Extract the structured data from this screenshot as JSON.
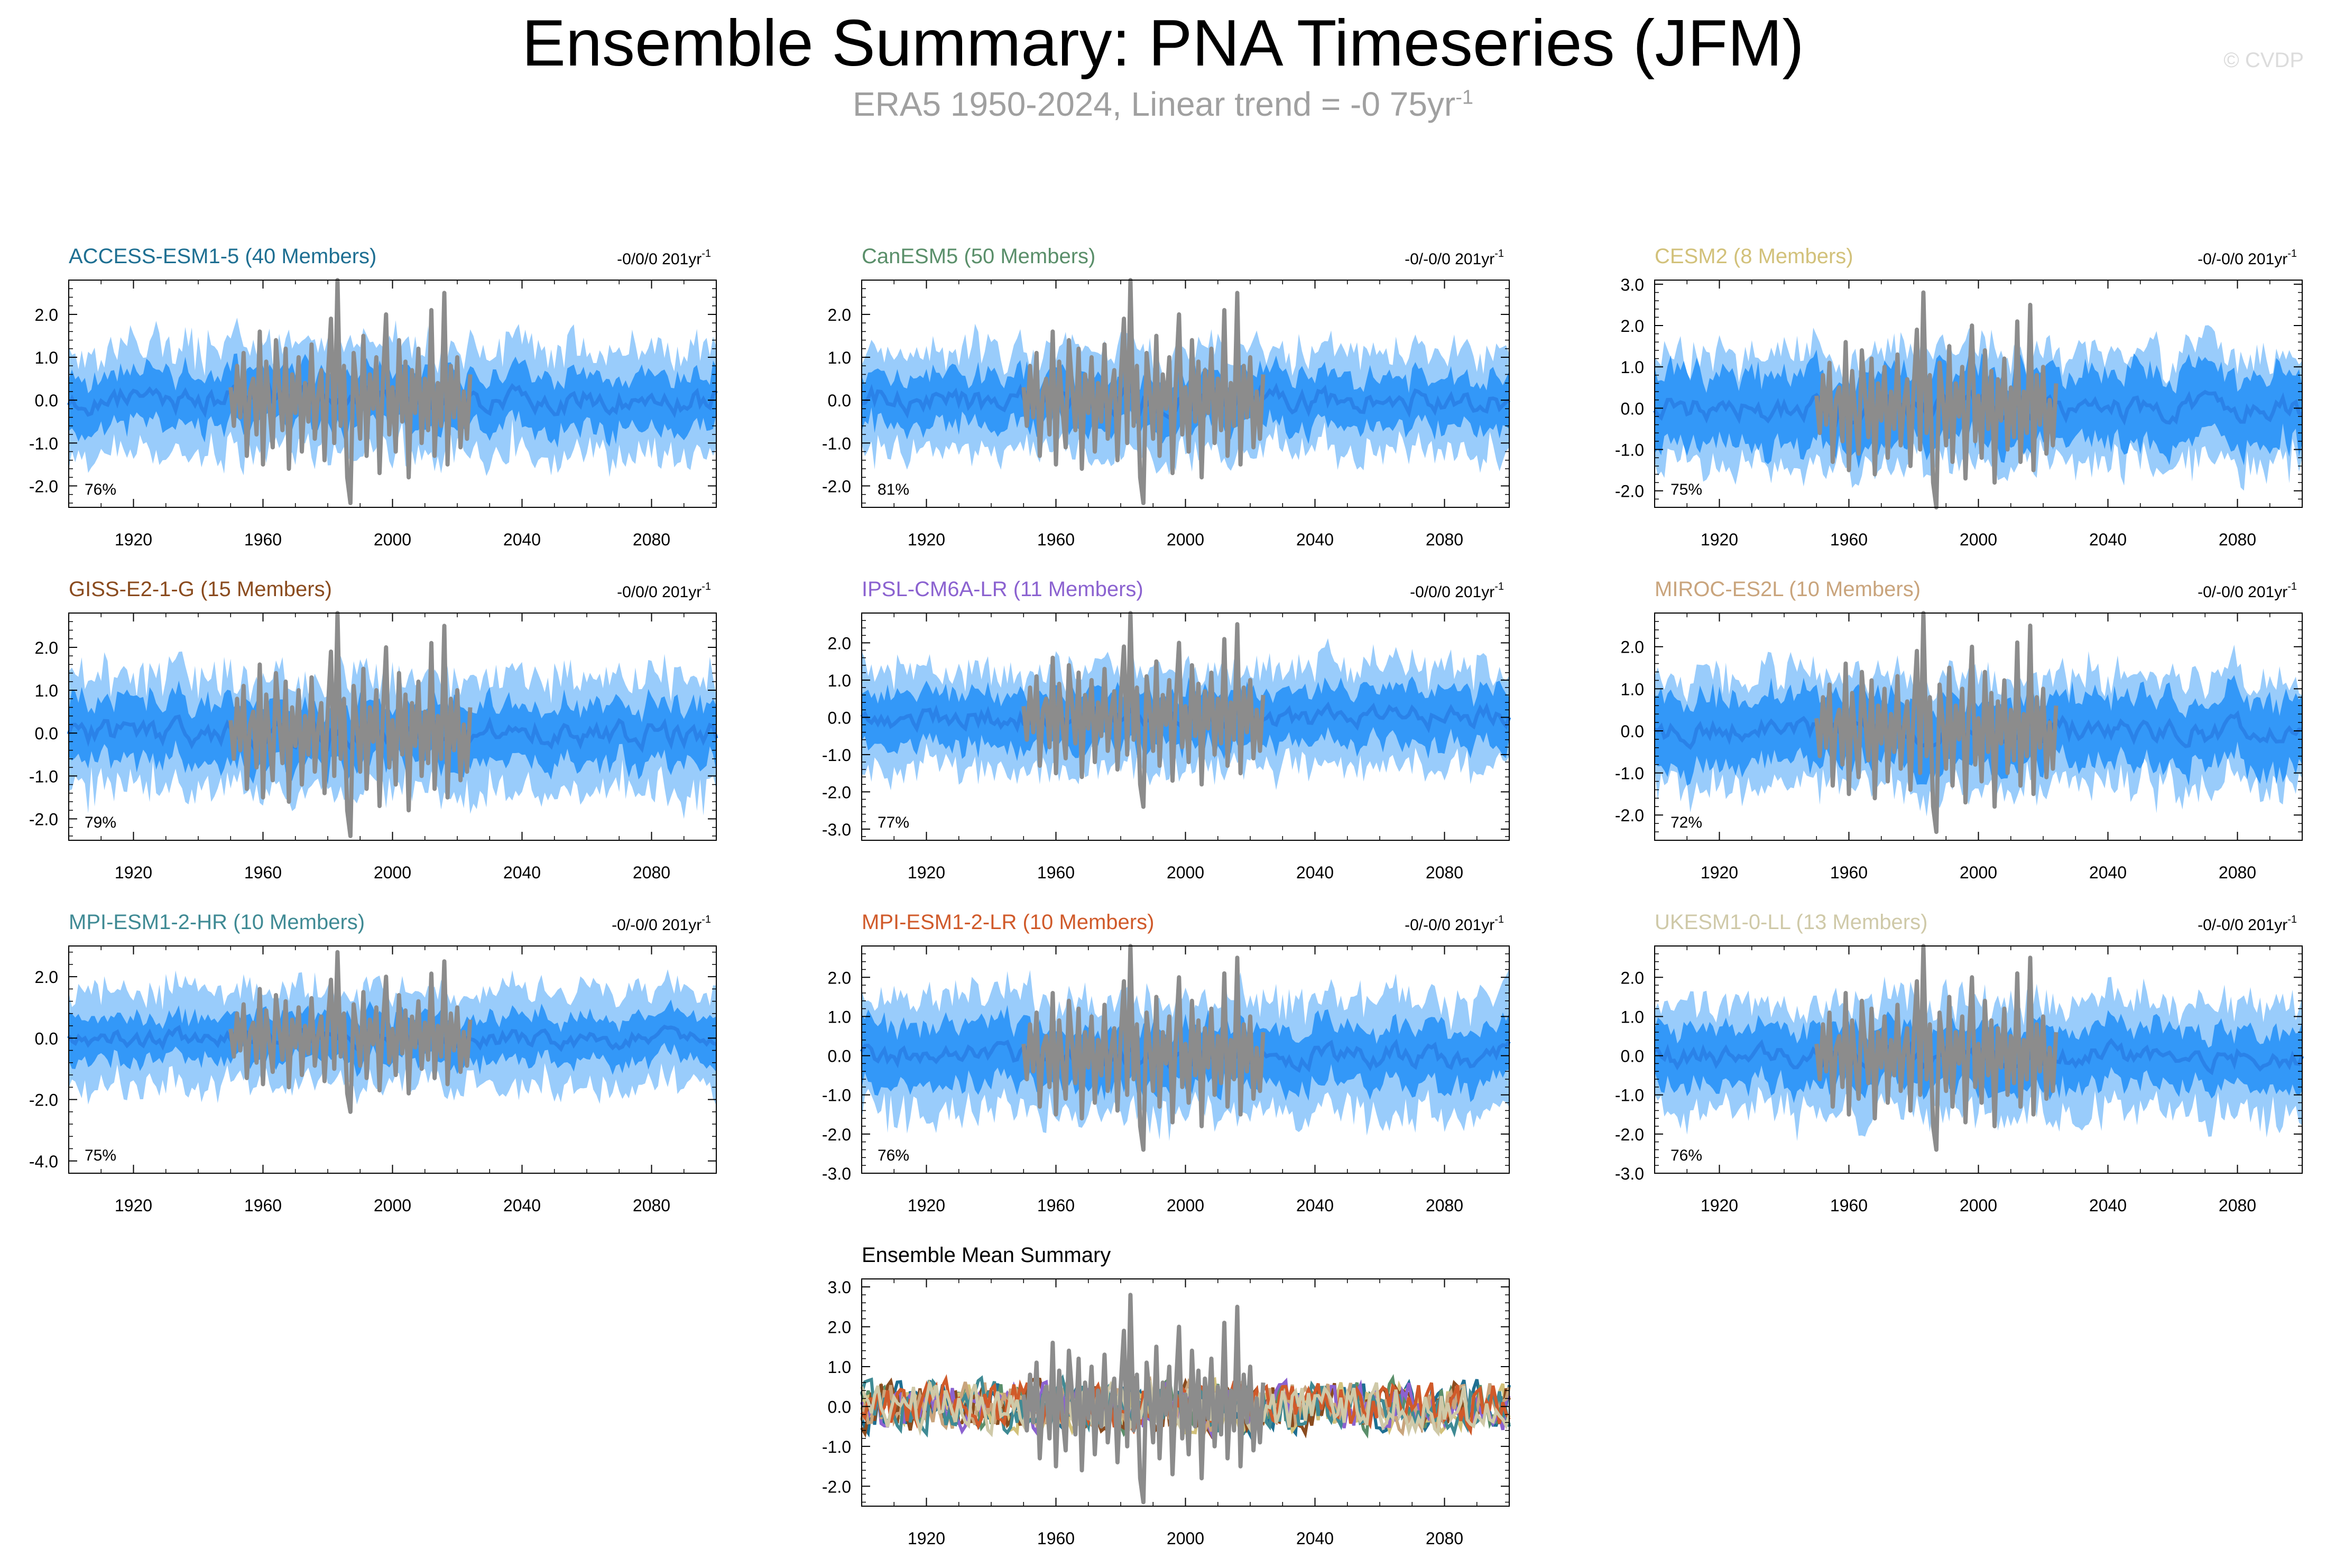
{
  "header": {
    "title": "Ensemble Summary: PNA Timeseries (JFM)",
    "subtitle": "ERA5 1950-2024, Linear trend = -0 75yr",
    "subtitle_exponent": "-1",
    "watermark": "© CVDP"
  },
  "colors": {
    "outer_band": "#99ccfb",
    "inner_band": "#3398f8",
    "mean_line": "#2a82e8",
    "observation_line": "#8c8c8c"
  },
  "chart_data": [
    {
      "type": "area",
      "title": "ACCESS-ESM1-5 (40 Members)",
      "title_color": "#1e6f92",
      "trend_label": "-0/0/0 201yr",
      "trend_exponent": "-1",
      "percent_label": "76%",
      "ylim": [
        -2.5,
        2.8
      ],
      "yticks": [
        2.0,
        1.0,
        0.0,
        -1.0,
        -2.0
      ],
      "x_range": [
        1900,
        2100
      ],
      "xticks": [
        1920,
        1960,
        2000,
        2040,
        2080
      ],
      "band_outer": 1.2,
      "band_inner": 0.62
    },
    {
      "type": "area",
      "title": "CanESM5 (50 Members)",
      "title_color": "#5a8f6a",
      "trend_label": "-0/-0/0 201yr",
      "trend_exponent": "-1",
      "percent_label": "81%",
      "ylim": [
        -2.5,
        2.8
      ],
      "yticks": [
        2.0,
        1.0,
        0.0,
        -1.0,
        -2.0
      ],
      "x_range": [
        1900,
        2100
      ],
      "xticks": [
        1920,
        1960,
        2000,
        2040,
        2080
      ],
      "band_outer": 1.15,
      "band_inner": 0.58
    },
    {
      "type": "area",
      "title": "CESM2 (8 Members)",
      "title_color": "#d2c17a",
      "trend_label": "-0/-0/0 201yr",
      "trend_exponent": "-1",
      "percent_label": "75%",
      "ylim": [
        -2.4,
        3.1
      ],
      "yticks": [
        3.0,
        2.0,
        1.0,
        0.0,
        -1.0,
        -2.0
      ],
      "x_range": [
        1900,
        2100
      ],
      "xticks": [
        1920,
        1960,
        2000,
        2040,
        2080
      ],
      "band_outer": 1.3,
      "band_inner": 0.85
    },
    {
      "type": "area",
      "title": "GISS-E2-1-G (15 Members)",
      "title_color": "#8a4b1e",
      "trend_label": "-0/0/0 201yr",
      "trend_exponent": "-1",
      "percent_label": "79%",
      "ylim": [
        -2.5,
        2.8
      ],
      "yticks": [
        2.0,
        1.0,
        0.0,
        -1.0,
        -2.0
      ],
      "x_range": [
        1900,
        2100
      ],
      "xticks": [
        1920,
        1960,
        2000,
        2040,
        2080
      ],
      "band_outer": 1.25,
      "band_inner": 0.7
    },
    {
      "type": "area",
      "title": "IPSL-CM6A-LR (11 Members)",
      "title_color": "#8b62d0",
      "trend_label": "-0/0/0 201yr",
      "trend_exponent": "-1",
      "percent_label": "77%",
      "ylim": [
        -3.3,
        2.8
      ],
      "yticks": [
        2.0,
        1.0,
        0.0,
        -1.0,
        -2.0,
        -3.0
      ],
      "x_range": [
        1900,
        2100
      ],
      "xticks": [
        1920,
        1960,
        2000,
        2040,
        2080
      ],
      "band_outer": 1.3,
      "band_inner": 0.72
    },
    {
      "type": "area",
      "title": "MIROC-ES2L (10 Members)",
      "title_color": "#c9a47c",
      "trend_label": "-0/-0/0 201yr",
      "trend_exponent": "-1",
      "percent_label": "72%",
      "ylim": [
        -2.6,
        2.8
      ],
      "yticks": [
        2.0,
        1.0,
        0.0,
        -1.0,
        -2.0
      ],
      "x_range": [
        1900,
        2100
      ],
      "xticks": [
        1920,
        1960,
        2000,
        2040,
        2080
      ],
      "band_outer": 1.25,
      "band_inner": 0.8
    },
    {
      "type": "area",
      "title": "MPI-ESM1-2-HR (10 Members)",
      "title_color": "#3f8a94",
      "trend_label": "-0/-0/0 201yr",
      "trend_exponent": "-1",
      "percent_label": "75%",
      "ylim": [
        -4.4,
        3.0
      ],
      "yticks": [
        2.0,
        0.0,
        -2.0,
        -4.0
      ],
      "x_range": [
        1900,
        2100
      ],
      "xticks": [
        1920,
        1960,
        2000,
        2040,
        2080
      ],
      "band_outer": 1.5,
      "band_inner": 0.7
    },
    {
      "type": "area",
      "title": "MPI-ESM1-2-LR (10 Members)",
      "title_color": "#d05a2a",
      "trend_label": "-0/-0/0 201yr",
      "trend_exponent": "-1",
      "percent_label": "76%",
      "ylim": [
        -3.0,
        2.8
      ],
      "yticks": [
        2.0,
        1.0,
        0.0,
        -1.0,
        -2.0,
        -3.0
      ],
      "x_range": [
        1900,
        2100
      ],
      "xticks": [
        1920,
        1960,
        2000,
        2040,
        2080
      ],
      "band_outer": 1.4,
      "band_inner": 0.75
    },
    {
      "type": "area",
      "title": "UKESM1-0-LL (13 Members)",
      "title_color": "#cfc9a8",
      "trend_label": "-0/-0/0 201yr",
      "trend_exponent": "-1",
      "percent_label": "76%",
      "ylim": [
        -3.0,
        2.8
      ],
      "yticks": [
        2.0,
        1.0,
        0.0,
        -1.0,
        -2.0,
        -3.0
      ],
      "x_range": [
        1900,
        2100
      ],
      "xticks": [
        1920,
        1960,
        2000,
        2040,
        2080
      ],
      "band_outer": 1.35,
      "band_inner": 0.72
    },
    {
      "type": "line",
      "title": "Ensemble Mean Summary",
      "title_color": "#000000",
      "ylim": [
        -2.5,
        3.2
      ],
      "yticks": [
        3.0,
        2.0,
        1.0,
        0.0,
        -1.0,
        -2.0
      ],
      "x_range": [
        1900,
        2100
      ],
      "xticks": [
        1920,
        1960,
        2000,
        2040,
        2080
      ],
      "series_colors": [
        "#1e6f92",
        "#5a8f6a",
        "#d2c17a",
        "#8a4b1e",
        "#8b62d0",
        "#c9a47c",
        "#3f8a94",
        "#d05a2a",
        "#cfc9a8"
      ]
    }
  ],
  "observation": {
    "label": "ERA5",
    "start_year": 1950,
    "values": [
      0.3,
      -0.6,
      0.8,
      -0.4,
      1.1,
      -1.3,
      0.2,
      0.5,
      -0.8,
      1.6,
      -1.5,
      0.9,
      -0.2,
      -1.1,
      1.4,
      0.3,
      -0.7,
      1.2,
      -1.6,
      0.6,
      -0.3,
      1.0,
      -1.2,
      0.4,
      -0.5,
      1.3,
      -0.9,
      0.1,
      0.7,
      -1.4,
      0.5,
      1.9,
      -1.0,
      2.8,
      -0.6,
      0.8,
      -1.8,
      -2.4,
      1.1,
      0.2,
      -0.9,
      1.5,
      -1.3,
      0.6,
      -0.2,
      1.0,
      -1.7,
      0.4,
      2.0,
      -0.8,
      0.3,
      -1.2,
      1.4,
      -0.5,
      0.9,
      -1.8,
      0.7,
      -0.3,
      1.2,
      -1.0,
      0.5,
      -0.7,
      2.1,
      -1.3,
      0.4,
      -0.6,
      2.5,
      -1.5,
      0.8,
      -0.4,
      1.0,
      -1.1,
      0.2,
      -0.9,
      0.6
    ]
  }
}
